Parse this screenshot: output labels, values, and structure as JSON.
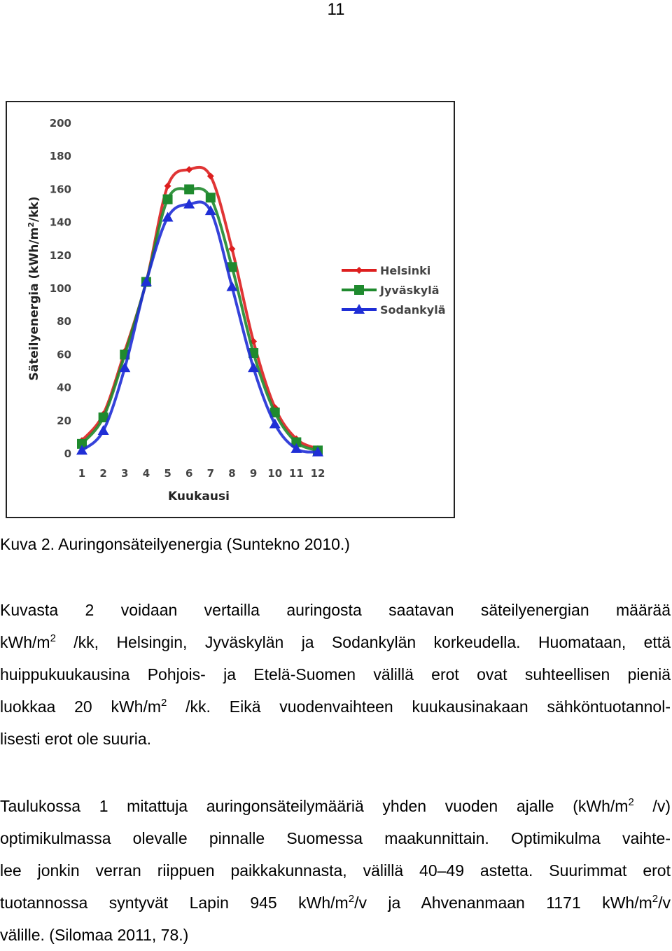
{
  "page_number": "11",
  "figure": {
    "caption": "Kuva 2. Auringonsäteilyenergia (Suntekno 2010.)",
    "chart_data": {
      "type": "line",
      "xlabel": "Kuukausi",
      "ylabel_pre": "Säteilyenergia (kWh/m",
      "ylabel_sup": "2",
      "ylabel_post": "/kk)",
      "x": [
        1,
        2,
        3,
        4,
        5,
        6,
        7,
        8,
        9,
        10,
        11,
        12
      ],
      "xlim": [
        1,
        12
      ],
      "ylim": [
        0,
        200
      ],
      "yticks": [
        0,
        20,
        40,
        60,
        80,
        100,
        120,
        140,
        160,
        180,
        200
      ],
      "grid": false,
      "legend_position": "right",
      "series": [
        {
          "name": "Helsinki",
          "color": "#dd1f1f",
          "marker": "diamond",
          "values": [
            8,
            24,
            62,
            104,
            162,
            172,
            168,
            124,
            68,
            28,
            9,
            3
          ]
        },
        {
          "name": "Jyväskylä",
          "color": "#1f8a2e",
          "marker": "square",
          "values": [
            6,
            22,
            60,
            104,
            154,
            160,
            155,
            113,
            61,
            25,
            7,
            2
          ]
        },
        {
          "name": "Sodankylä",
          "color": "#1f2ed6",
          "marker": "triangle",
          "values": [
            2,
            14,
            52,
            104,
            143,
            151,
            147,
            101,
            52,
            18,
            3,
            1
          ]
        }
      ]
    }
  },
  "paragraph1": {
    "l1": "Kuvasta 2 voidaan vertailla auringosta saatavan säteilyenergian määrää",
    "l2_a": "kWh/m",
    "l2_sup": "2",
    "l2_b": " /kk, Helsingin, Jyväskylän ja Sodankylän korkeudella. Huomataan, että",
    "l3": "huippukuukausina Pohjois- ja Etelä-Suomen välillä erot ovat suhteellisen pieniä",
    "l4_a": "luokkaa 20 kWh/m",
    "l4_sup": "2",
    "l4_b": " /kk. Eikä vuodenvaihteen kuukausinakaan sähköntuotannol-",
    "l5": "lisesti erot ole suuria."
  },
  "paragraph2": {
    "l1_a": "Taulukossa 1 mitattuja auringonsäteilymääriä yhden vuoden ajalle (kWh/m",
    "l1_sup": "2",
    "l1_b": " /v)",
    "l2": "optimikulmassa olevalle pinnalle Suomessa maakunnittain. Optimikulma vaihte-",
    "l3": "lee jonkin verran riippuen paikkakunnasta, välillä 40–49 astetta. Suurimmat erot",
    "l4_a": "tuotannossa syntyvät Lapin 945 kWh/m",
    "l4_sup1": "2",
    "l4_b": "/v ja Ahvenanmaan 1171 kWh/m",
    "l4_sup2": "2",
    "l4_c": "/v",
    "l5": "välille. (Silomaa 2011, 78.)"
  }
}
